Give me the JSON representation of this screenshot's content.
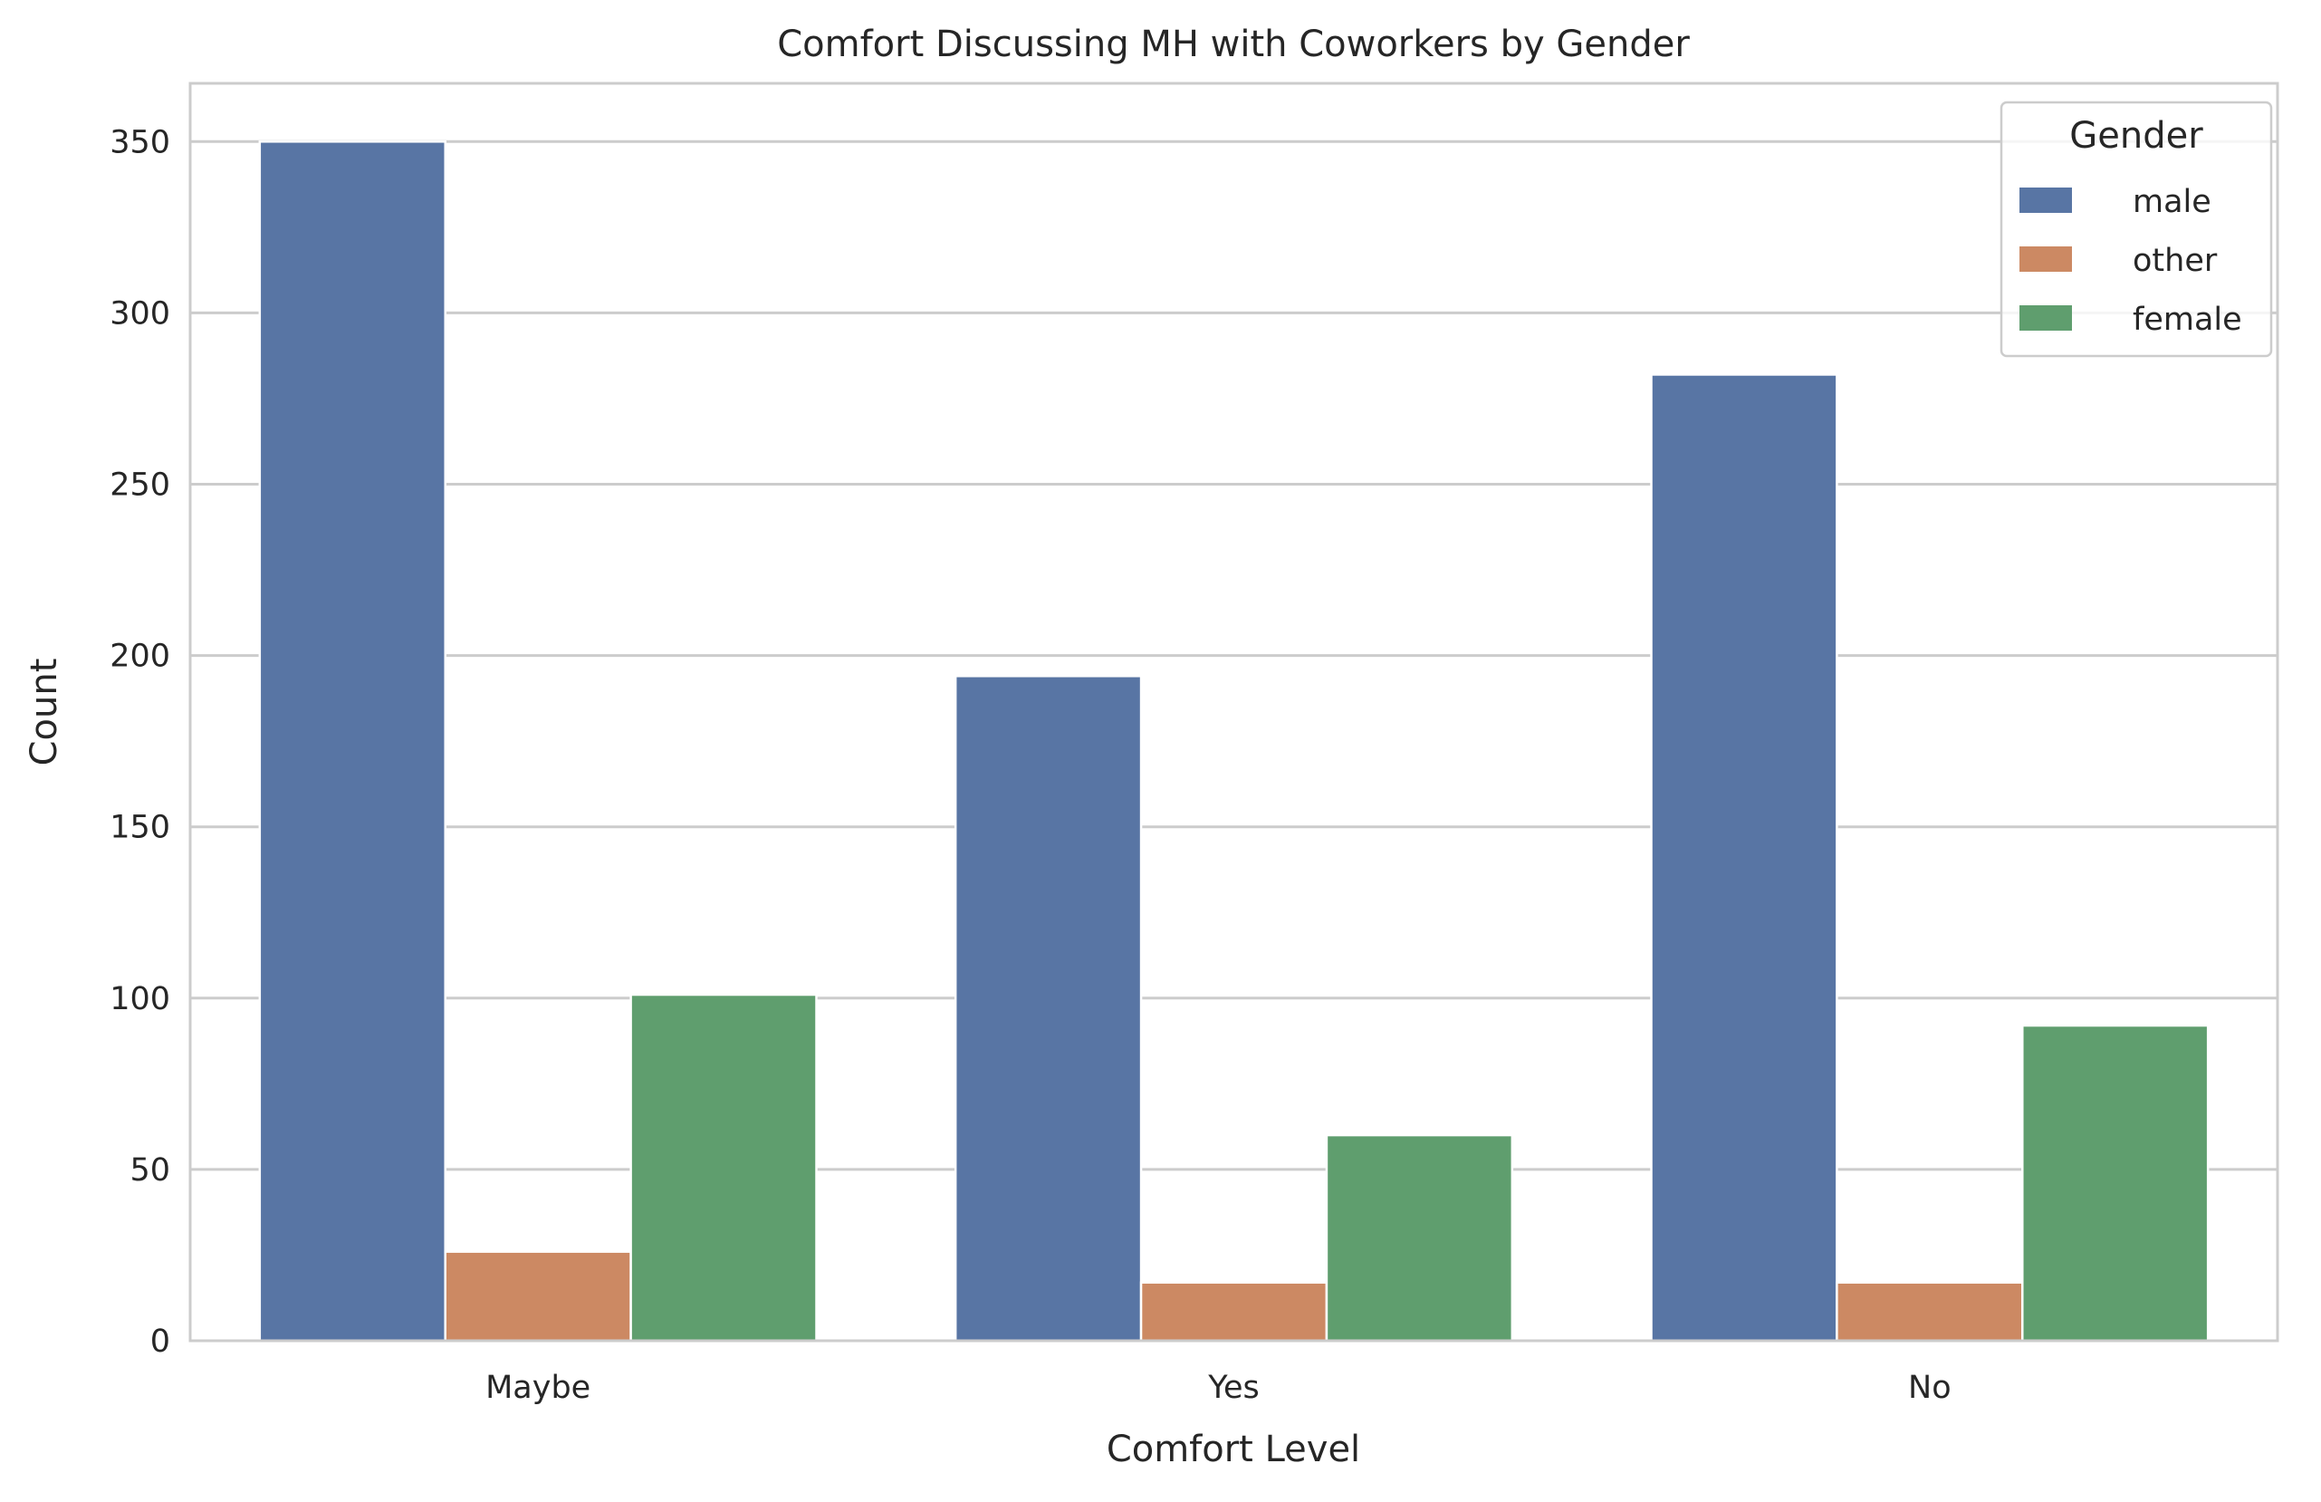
{
  "chart_data": {
    "type": "bar",
    "title": "Comfort Discussing MH with Coworkers by Gender",
    "xlabel": "Comfort Level",
    "ylabel": "Count",
    "categories": [
      "Maybe",
      "Yes",
      "No"
    ],
    "ylim": [
      0,
      367
    ],
    "yticks": [
      0,
      50,
      100,
      150,
      200,
      250,
      300,
      350
    ],
    "grid": true,
    "legend": {
      "title": "Gender",
      "placement": "top-right"
    },
    "series": [
      {
        "name": "male",
        "color": "#5875a4",
        "values": [
          350,
          194,
          282
        ]
      },
      {
        "name": "other",
        "color": "#cc8963",
        "values": [
          26,
          17,
          17
        ]
      },
      {
        "name": "female",
        "color": "#5f9e6e",
        "values": [
          101,
          60,
          92
        ]
      }
    ]
  }
}
